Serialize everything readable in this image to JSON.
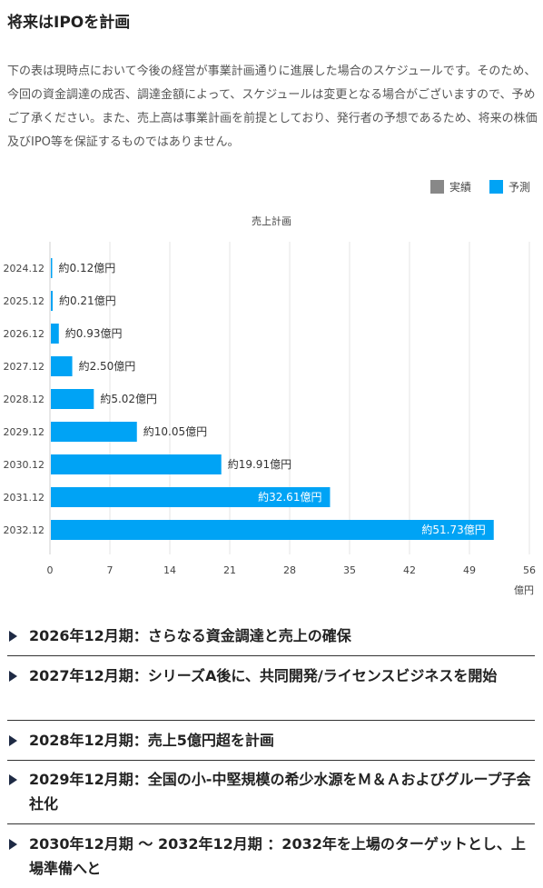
{
  "heading": "将来はIPOを計画",
  "description": "下の表は現時点において今後の経営が事業計画通りに進展した場合のスケジュールです。そのため、今回の資金調達の成否、調達金額によって、スケジュールは変更となる場合がございますので、予めご了承ください。また、売上高は事業計画を前提としており、発行者の予想であるため、将来の株価及びIPO等を保証するものではありません。",
  "legend": [
    {
      "label": "実績",
      "color": "#888888"
    },
    {
      "label": "予測",
      "color": "#00a3f5"
    }
  ],
  "chart_data": {
    "type": "bar",
    "orientation": "horizontal",
    "title": "売上計画",
    "xlabel": "億円",
    "categories": [
      "2024.12",
      "2025.12",
      "2026.12",
      "2027.12",
      "2028.12",
      "2029.12",
      "2030.12",
      "2031.12",
      "2032.12"
    ],
    "values": [
      0.12,
      0.21,
      0.93,
      2.5,
      5.02,
      10.05,
      19.91,
      32.61,
      51.73
    ],
    "data_labels": [
      "約0.12億円",
      "約0.21億円",
      "約0.93億円",
      "約2.50億円",
      "約5.02億円",
      "約10.05億円",
      "約19.91億円",
      "約32.61億円",
      "約51.73億円"
    ],
    "xlim": [
      0,
      56
    ],
    "xticks": [
      0,
      7,
      14,
      21,
      28,
      35,
      42,
      49,
      56
    ],
    "bar_color": "#00a3f5",
    "grid": true
  },
  "sections": [
    {
      "text": "2026年12月期：さらなる資金調達と売上の確保"
    },
    {
      "text": "2027年12月期：シリーズA後に、共同開発/ライセンスビジネスを開始"
    },
    {
      "text": "2028年12月期：売上5億円超を計画"
    },
    {
      "text": "2029年12月期：全国の小-中堅規模の希少水源をＭ＆Ａおよびグループ子会社化"
    },
    {
      "text": "2030年12月期 〜 2032年12月期 ：2032年を上場のターゲットとし、上場準備へと"
    }
  ]
}
